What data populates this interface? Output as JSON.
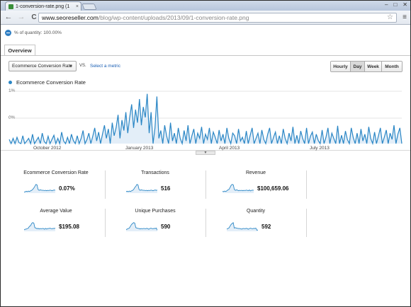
{
  "browser": {
    "tab_title": "1-conversion-rate.png (1",
    "tab_close": "×",
    "window_controls": [
      "–",
      "□",
      "✕"
    ],
    "url_host": "www.seoreseller.com",
    "url_path": "/blog/wp-content/uploads/2013/09/1-conversion-rate.png",
    "back_glyph": "←",
    "forward_glyph": "→",
    "reload_glyph": "C",
    "star_glyph": "☆",
    "menu_glyph": "≡"
  },
  "segment": {
    "label": "% of quantity: 100.00%"
  },
  "tabs": {
    "overview": "Overview"
  },
  "controls": {
    "metric": "Ecommerce Conversion Rate",
    "caret": "▼",
    "vs": "VS.",
    "select_metric": "Select a metric",
    "periods": [
      {
        "label": "Hourly",
        "active": false
      },
      {
        "label": "Day",
        "active": true
      },
      {
        "label": "Week",
        "active": false
      },
      {
        "label": "Month",
        "active": false
      }
    ]
  },
  "chart_data": {
    "type": "area",
    "legend": "Ecommerce Conversion Rate",
    "y_ticks": [
      "1%",
      "0%"
    ],
    "x_labels": [
      "October 2012",
      "January 2013",
      "April 2013",
      "July 2013"
    ],
    "series_color": "#2a86c5",
    "fill_color": "#e3eef8",
    "values": [
      0.08,
      0.0,
      0.1,
      0.0,
      0.12,
      0.02,
      0.0,
      0.15,
      0.0,
      0.05,
      0.1,
      0.0,
      0.18,
      0.0,
      0.06,
      0.12,
      0.0,
      0.2,
      0.04,
      0.0,
      0.14,
      0.0,
      0.08,
      0.16,
      0.0,
      0.1,
      0.0,
      0.22,
      0.05,
      0.0,
      0.12,
      0.0,
      0.18,
      0.06,
      0.0,
      0.15,
      0.0,
      0.1,
      0.25,
      0.0,
      0.08,
      0.2,
      0.0,
      0.14,
      0.3,
      0.05,
      0.22,
      0.0,
      0.18,
      0.35,
      0.1,
      0.28,
      0.0,
      0.4,
      0.15,
      0.3,
      0.55,
      0.1,
      0.45,
      0.25,
      0.6,
      0.2,
      0.5,
      0.75,
      0.3,
      0.65,
      0.4,
      0.85,
      0.35,
      0.7,
      0.5,
      0.95,
      0.2,
      0.6,
      0.0,
      0.3,
      0.9,
      0.1,
      0.25,
      0.0,
      0.35,
      0.15,
      0.0,
      0.4,
      0.05,
      0.2,
      0.0,
      0.3,
      0.1,
      0.0,
      0.25,
      0.05,
      0.35,
      0.0,
      0.15,
      0.28,
      0.0,
      0.2,
      0.1,
      0.32,
      0.0,
      0.18,
      0.08,
      0.3,
      0.0,
      0.22,
      0.12,
      0.0,
      0.26,
      0.05,
      0.18,
      0.0,
      0.3,
      0.1,
      0.0,
      0.2,
      0.15,
      0.0,
      0.28,
      0.05,
      0.12,
      0.0,
      0.24,
      0.0,
      0.16,
      0.3,
      0.0,
      0.1,
      0.2,
      0.0,
      0.26,
      0.08,
      0.0,
      0.18,
      0.3,
      0.0,
      0.12,
      0.22,
      0.0,
      0.15,
      0.0,
      0.28,
      0.1,
      0.0,
      0.2,
      0.05,
      0.32,
      0.0,
      0.16,
      0.0,
      0.24,
      0.1,
      0.0,
      0.3,
      0.0,
      0.14,
      0.22,
      0.0,
      0.18,
      0.06,
      0.0,
      0.26,
      0.0,
      0.12,
      0.3,
      0.0,
      0.2,
      0.1,
      0.0,
      0.34,
      0.0,
      0.16,
      0.0,
      0.24,
      0.08,
      0.0,
      0.3,
      0.12,
      0.0,
      0.2,
      0.0,
      0.28,
      0.05,
      0.18,
      0.0,
      0.32,
      0.1,
      0.0,
      0.22,
      0.0,
      0.15,
      0.3,
      0.0,
      0.12,
      0.26,
      0.0,
      0.2,
      0.08,
      0.35,
      0.0,
      0.18,
      0.3,
      0.0
    ]
  },
  "scorecards": [
    {
      "title": "Ecommerce Conversion Rate",
      "value": "0.07%"
    },
    {
      "title": "Transactions",
      "value": "516"
    },
    {
      "title": "Revenue",
      "value": "$100,659.06"
    },
    {
      "title": "Average Value",
      "value": "$195.08"
    },
    {
      "title": "Unique Purchases",
      "value": "590"
    },
    {
      "title": "Quantity",
      "value": "592"
    }
  ]
}
